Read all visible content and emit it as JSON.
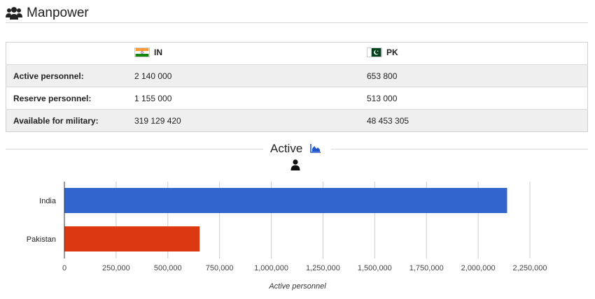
{
  "header": {
    "title": "Manpower",
    "icon": "users-icon"
  },
  "table": {
    "countries": [
      {
        "code": "IN",
        "flag": "india-flag-icon"
      },
      {
        "code": "PK",
        "flag": "pakistan-flag-icon"
      }
    ],
    "rows": [
      {
        "label": "Active personnel:",
        "values": [
          "2 140 000",
          "653 800"
        ]
      },
      {
        "label": "Reserve personnel:",
        "values": [
          "1 155 000",
          "513 000"
        ]
      },
      {
        "label": "Available for military:",
        "values": [
          "319 129 420",
          "48 453 305"
        ]
      }
    ]
  },
  "section": {
    "title": "Active",
    "icon": "area-chart-icon",
    "sub_icon": "person-icon"
  },
  "chart_data": {
    "type": "bar",
    "orientation": "horizontal",
    "categories": [
      "India",
      "Pakistan"
    ],
    "values": [
      2140000,
      653800
    ],
    "colors": [
      "#3366cc",
      "#dc3912"
    ],
    "xlabel": "Active personnel",
    "xlim": [
      0,
      2250000
    ],
    "ticks": [
      "0",
      "250,000",
      "500,000",
      "750,000",
      "1,000,000",
      "1,250,000",
      "1,500,000",
      "1,750,000",
      "2,000,000",
      "2,250,000"
    ],
    "grid": true
  }
}
